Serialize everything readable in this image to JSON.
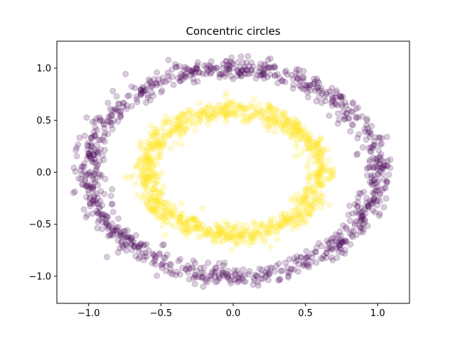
{
  "chart_data": {
    "type": "scatter",
    "title": "Concentric circles",
    "xlabel": "",
    "ylabel": "",
    "xlim": [
      -1.22,
      1.22
    ],
    "ylim": [
      -1.26,
      1.26
    ],
    "xticks": [
      -1.0,
      -0.5,
      0.0,
      0.5,
      1.0
    ],
    "xtick_labels": [
      "−1.0",
      "−0.5",
      "0.0",
      "0.5",
      "1.0"
    ],
    "yticks": [
      -1.0,
      -0.5,
      0.0,
      0.5,
      1.0
    ],
    "ytick_labels": [
      "−1.0",
      "−0.5",
      "0.0",
      "0.5",
      "1.0"
    ],
    "grid": false,
    "legend": "none",
    "marker_alpha": 0.2,
    "series": [
      {
        "shape": "circle",
        "color": "#440154",
        "center": [
          0,
          0
        ],
        "radius": 1.0,
        "noise_sd": 0.05,
        "count": 1000
      },
      {
        "shape": "circle",
        "color": "#fde725",
        "center": [
          0,
          0
        ],
        "radius": 0.6,
        "noise_sd": 0.05,
        "count": 1000
      }
    ]
  }
}
